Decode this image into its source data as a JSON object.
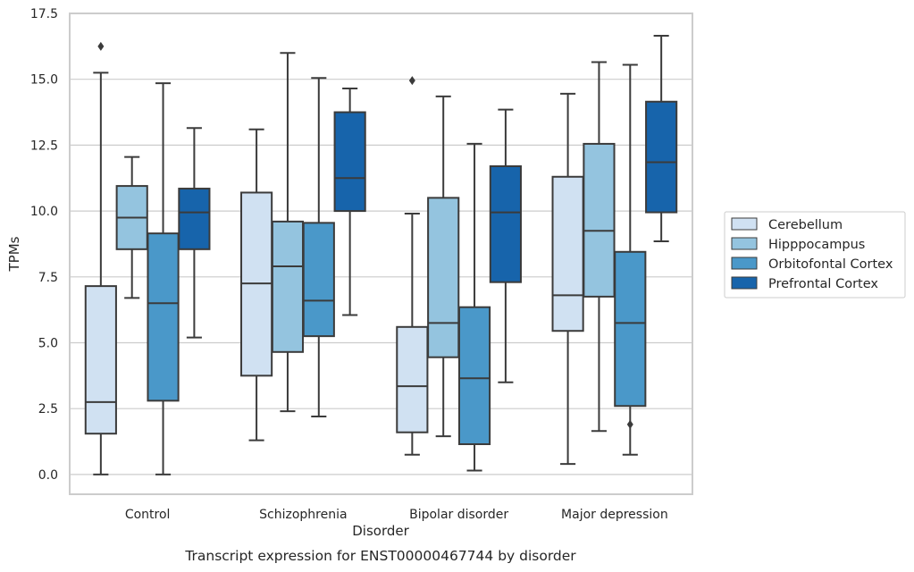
{
  "chart_data": {
    "type": "box",
    "caption": "Transcript expression for ENST00000467744 by disorder",
    "xlabel": "Disorder",
    "ylabel": "TPMs",
    "ylim": [
      -0.75,
      17.5
    ],
    "yticks": [
      0,
      2.5,
      5,
      7.5,
      10,
      12.5,
      15,
      17.5
    ],
    "ytick_labels": [
      "0.0",
      "2.5",
      "5.0",
      "7.5",
      "10.0",
      "12.5",
      "15.0",
      "17.5"
    ],
    "grid": "horizontal",
    "legend_placement": "right",
    "categories": [
      "Control",
      "Schizophrenia",
      "Bipolar disorder",
      "Major depression"
    ],
    "series": [
      {
        "name": "Cerebellum",
        "color": "#d0e1f2",
        "boxes": [
          {
            "whisker_low": 0.0,
            "q1": 1.55,
            "median": 2.75,
            "q3": 7.15,
            "whisker_high": 15.25,
            "outliers": [
              16.25
            ]
          },
          {
            "whisker_low": 1.3,
            "q1": 3.75,
            "median": 7.25,
            "q3": 10.7,
            "whisker_high": 13.1,
            "outliers": []
          },
          {
            "whisker_low": 0.75,
            "q1": 1.6,
            "median": 3.35,
            "q3": 5.6,
            "whisker_high": 9.9,
            "outliers": [
              14.95
            ]
          },
          {
            "whisker_low": 0.4,
            "q1": 5.45,
            "median": 6.8,
            "q3": 11.3,
            "whisker_high": 14.45,
            "outliers": []
          }
        ]
      },
      {
        "name": "Hipppocampus",
        "color": "#94c4df",
        "boxes": [
          {
            "whisker_low": 6.7,
            "q1": 8.55,
            "median": 9.75,
            "q3": 10.95,
            "whisker_high": 12.05,
            "outliers": []
          },
          {
            "whisker_low": 2.4,
            "q1": 4.65,
            "median": 7.9,
            "q3": 9.6,
            "whisker_high": 16.0,
            "outliers": []
          },
          {
            "whisker_low": 1.45,
            "q1": 4.45,
            "median": 5.75,
            "q3": 10.5,
            "whisker_high": 14.35,
            "outliers": []
          },
          {
            "whisker_low": 1.65,
            "q1": 6.75,
            "median": 9.25,
            "q3": 12.55,
            "whisker_high": 15.65,
            "outliers": []
          }
        ]
      },
      {
        "name": "Orbitofontal Cortex",
        "color": "#4a98c9",
        "boxes": [
          {
            "whisker_low": 0.0,
            "q1": 2.8,
            "median": 6.5,
            "q3": 9.15,
            "whisker_high": 14.85,
            "outliers": []
          },
          {
            "whisker_low": 2.2,
            "q1": 5.25,
            "median": 6.6,
            "q3": 9.55,
            "whisker_high": 15.05,
            "outliers": []
          },
          {
            "whisker_low": 0.15,
            "q1": 1.15,
            "median": 3.65,
            "q3": 6.35,
            "whisker_high": 12.55,
            "outliers": []
          },
          {
            "whisker_low": 0.75,
            "q1": 2.6,
            "median": 5.75,
            "q3": 8.45,
            "whisker_high": 15.55,
            "outliers": [
              1.9
            ]
          }
        ]
      },
      {
        "name": "Prefrontal Cortex",
        "color": "#1764ab",
        "boxes": [
          {
            "whisker_low": 5.2,
            "q1": 8.55,
            "median": 9.95,
            "q3": 10.85,
            "whisker_high": 13.15,
            "outliers": []
          },
          {
            "whisker_low": 6.05,
            "q1": 10.0,
            "median": 11.25,
            "q3": 13.75,
            "whisker_high": 14.65,
            "outliers": []
          },
          {
            "whisker_low": 3.5,
            "q1": 7.3,
            "median": 9.95,
            "q3": 11.7,
            "whisker_high": 13.85,
            "outliers": []
          },
          {
            "whisker_low": 8.85,
            "q1": 9.95,
            "median": 11.85,
            "q3": 14.15,
            "whisker_high": 16.65,
            "outliers": []
          }
        ]
      }
    ]
  }
}
